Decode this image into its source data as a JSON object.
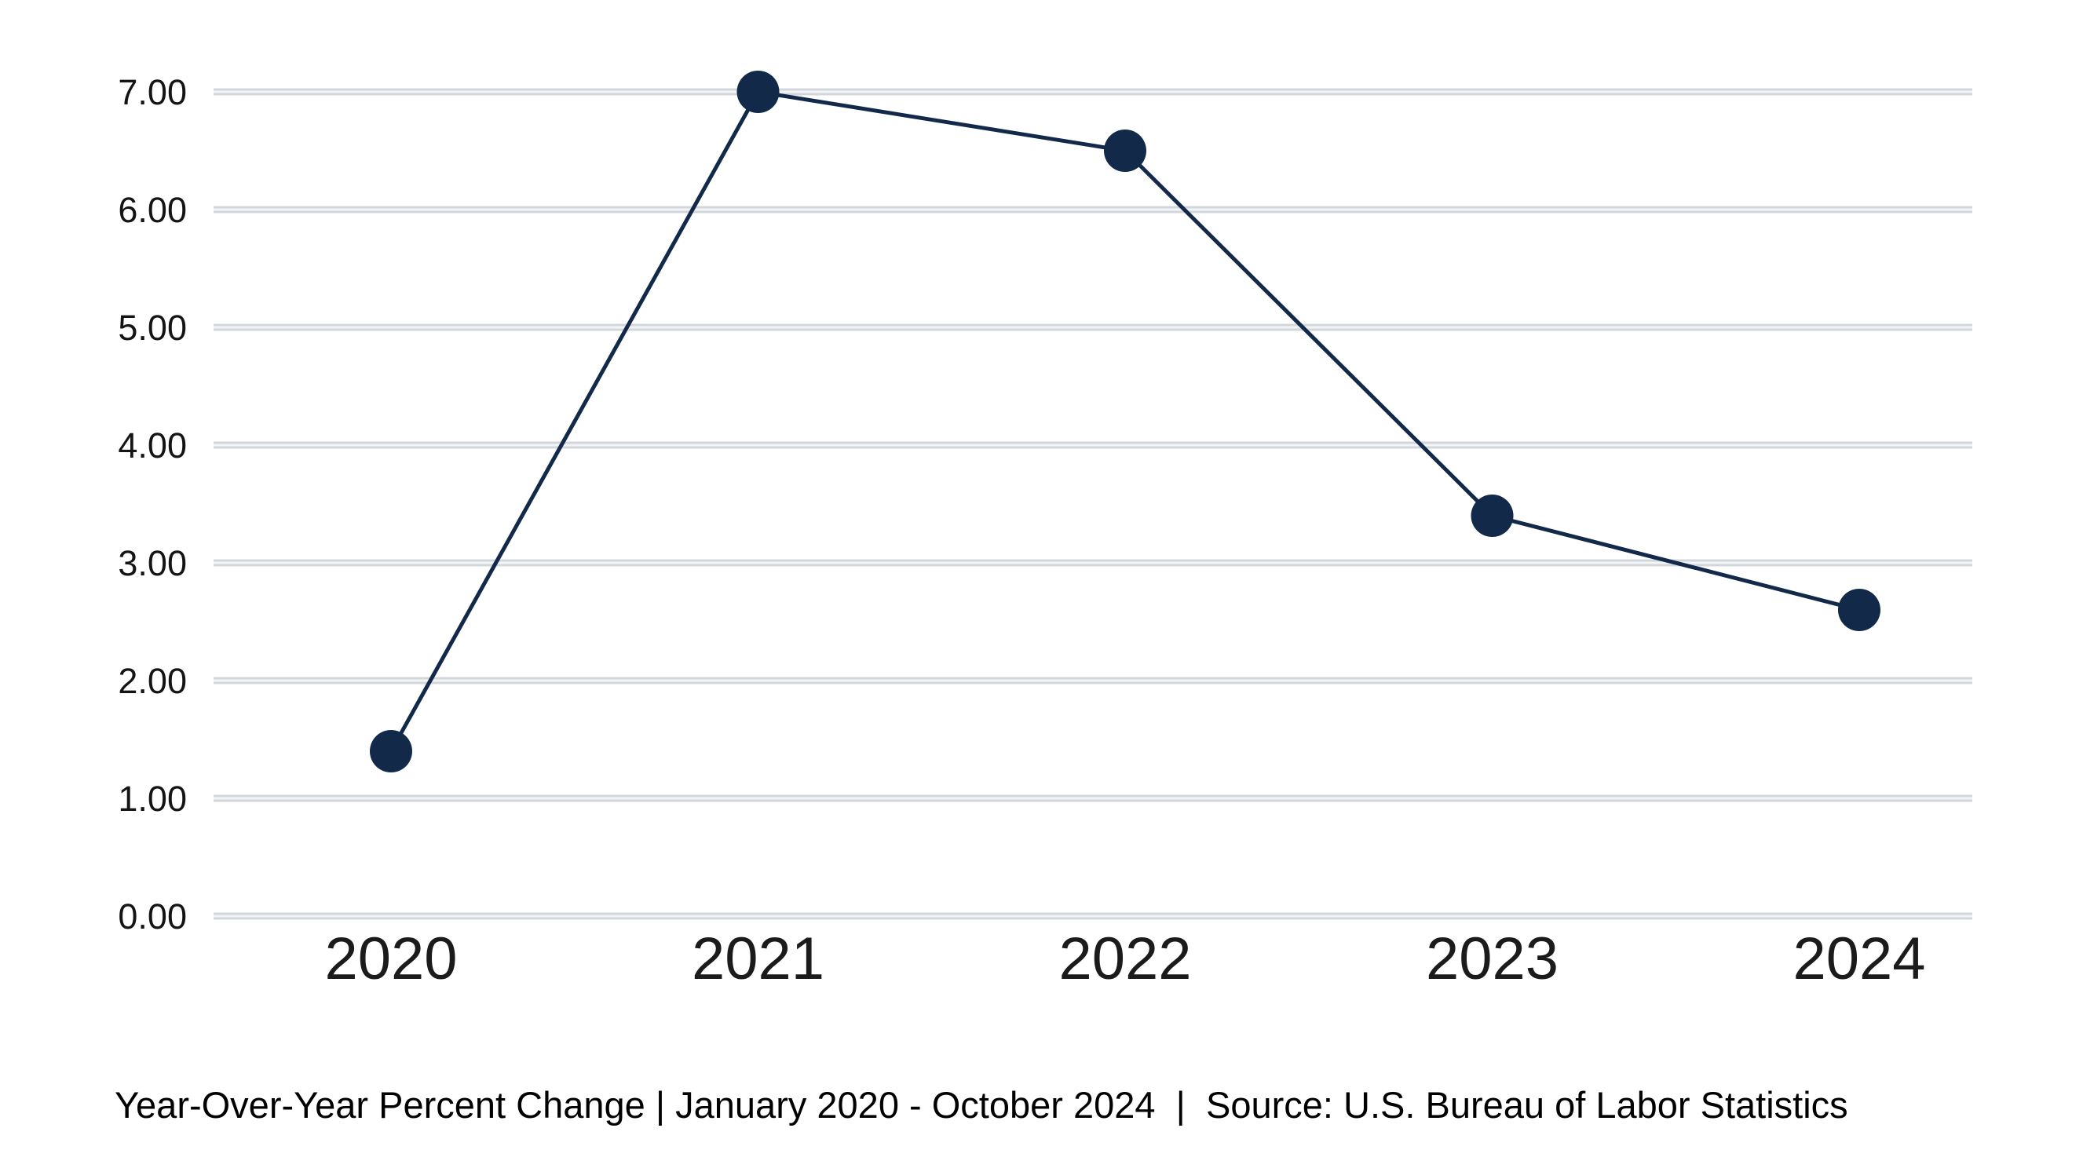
{
  "chart_data": {
    "type": "line",
    "title": "",
    "x": [
      "2020",
      "2021",
      "2022",
      "2023",
      "2024"
    ],
    "series": [
      {
        "name": "Year-Over-Year Percent Change",
        "values": [
          1.4,
          7.0,
          6.5,
          3.4,
          2.6
        ]
      }
    ],
    "y_ticks": [
      "0.00",
      "1.00",
      "2.00",
      "3.00",
      "4.00",
      "5.00",
      "6.00",
      "7.00"
    ],
    "ylim": [
      0,
      7
    ],
    "grid": "horizontal",
    "legend_position": "none",
    "line_color": "#12294A",
    "point_color": "#12294A",
    "gridline_color": "#D3D7DC",
    "gridline_inner_color": "#F3F4F6",
    "tick_label_color": "#141414"
  },
  "caption": {
    "text": "Year-Over-Year Percent Change | January 2020 - October 2024  |  Source: U.S. Bureau of Labor Statistics"
  }
}
